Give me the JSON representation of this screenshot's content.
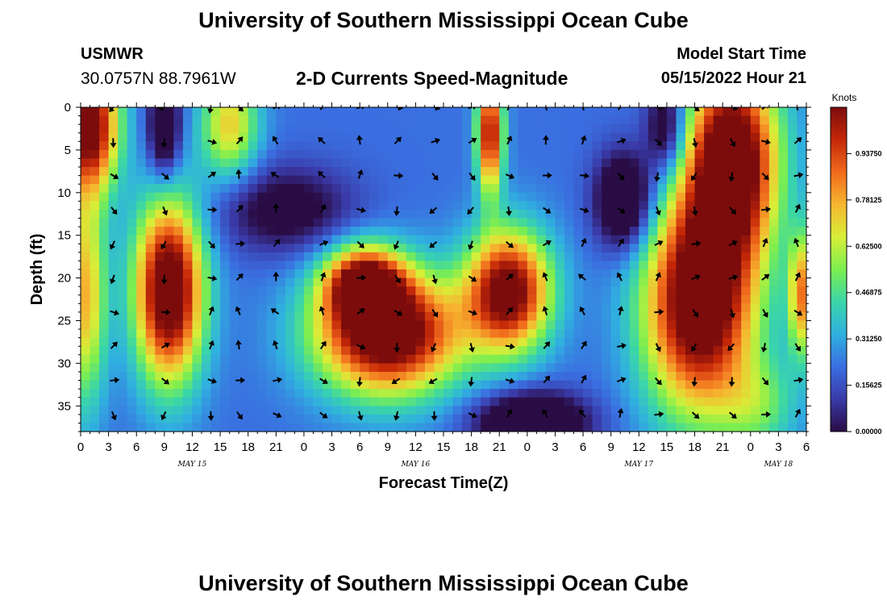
{
  "header": {
    "title": "University of Southern Mississippi Ocean Cube",
    "station": "USMWR",
    "coords": "30.0757N  88.7961W",
    "subtitle": "2-D Currents Speed-Magnitude",
    "model_start_label": "Model Start Time",
    "model_start_value": "05/15/2022 Hour 21"
  },
  "footer": {
    "title": "University of Southern Mississippi Ocean Cube"
  },
  "chart_data": {
    "type": "heatmap",
    "title": "2-D Currents Speed-Magnitude",
    "xlabel": "Forecast Time(Z)",
    "ylabel": "Depth (ft)",
    "x_ticks": [
      "0",
      "3",
      "6",
      "9",
      "12",
      "15",
      "18",
      "21",
      "0",
      "3",
      "6",
      "9",
      "12",
      "15",
      "18",
      "21",
      "0",
      "3",
      "6",
      "9",
      "12",
      "15",
      "18",
      "21",
      "0",
      "3",
      "6"
    ],
    "x_range_hours": [
      0,
      78
    ],
    "date_labels": [
      {
        "text": "MAY 15",
        "hour": 12
      },
      {
        "text": "MAY 16",
        "hour": 36
      },
      {
        "text": "MAY 17",
        "hour": 60
      },
      {
        "text": "MAY 18",
        "hour": 75
      }
    ],
    "y_ticks": [
      0,
      5,
      10,
      15,
      20,
      25,
      30,
      35
    ],
    "y_range": [
      0,
      38
    ],
    "colorbar": {
      "label": "Knots",
      "ticks": [
        "0.00000",
        "0.15625",
        "0.31250",
        "0.46875",
        "0.62500",
        "0.78125",
        "0.93750"
      ],
      "range": [
        0,
        1.09375
      ],
      "colors": [
        "#2a0c45",
        "#3a3aa8",
        "#3a6ee0",
        "#30b0e0",
        "#3ad6a8",
        "#7cee50",
        "#d8ee38",
        "#f6b630",
        "#f06a1c",
        "#c42808",
        "#7c0c0c"
      ]
    },
    "speed_blobs": [
      {
        "hour": 1.0,
        "depth": 2.0,
        "sx": 2.2,
        "sy": 5.5,
        "speed": 0.95
      },
      {
        "hour": 0.5,
        "depth": 22.0,
        "sx": 1.6,
        "sy": 9.0,
        "speed": 0.55
      },
      {
        "hour": 9.5,
        "depth": 21.5,
        "sx": 2.6,
        "sy": 7.5,
        "speed": 1.05
      },
      {
        "hour": 16.0,
        "depth": 2.0,
        "sx": 2.2,
        "sy": 4.5,
        "speed": 0.5
      },
      {
        "hour": 33.0,
        "depth": 26.5,
        "sx": 5.5,
        "sy": 5.0,
        "speed": 1.05
      },
      {
        "hour": 30.5,
        "depth": 20.5,
        "sx": 3.0,
        "sy": 3.0,
        "speed": 0.8
      },
      {
        "hour": 46.0,
        "depth": 21.5,
        "sx": 3.2,
        "sy": 5.0,
        "speed": 0.95
      },
      {
        "hour": 44.0,
        "depth": 3.0,
        "sx": 1.0,
        "sy": 5.0,
        "speed": 0.85
      },
      {
        "hour": 66.5,
        "depth": 23.0,
        "sx": 4.2,
        "sy": 9.0,
        "speed": 1.05
      },
      {
        "hour": 70.0,
        "depth": 6.0,
        "sx": 3.5,
        "sy": 8.0,
        "speed": 1.05
      },
      {
        "hour": 77.5,
        "depth": 22.0,
        "sx": 1.0,
        "sy": 5.0,
        "speed": 0.6
      },
      {
        "hour": 73.0,
        "depth": 35.0,
        "sx": 3.0,
        "sy": 4.0,
        "speed": 0.25
      },
      {
        "hour": 9.0,
        "depth": 2.5,
        "sx": 1.2,
        "sy": 4.0,
        "speed": -0.45
      },
      {
        "hour": 22.0,
        "depth": 12.0,
        "sx": 5.0,
        "sy": 3.5,
        "speed": -0.3
      },
      {
        "hour": 58.5,
        "depth": 11.0,
        "sx": 2.2,
        "sy": 4.0,
        "speed": -0.5
      },
      {
        "hour": 63.0,
        "depth": 2.5,
        "sx": 1.6,
        "sy": 4.0,
        "speed": -0.4
      },
      {
        "hour": 48.5,
        "depth": 37.0,
        "sx": 4.0,
        "sy": 2.5,
        "speed": -0.55
      }
    ],
    "base_speed": 0.22,
    "arrows": {
      "hours": [
        3.5,
        9,
        14,
        17,
        21,
        26,
        30,
        34,
        38,
        42,
        46,
        50,
        54,
        58,
        62,
        66,
        70,
        73.5,
        77
      ],
      "depths": [
        0,
        4,
        8,
        12,
        16,
        20,
        24,
        28,
        32,
        36
      ]
    }
  }
}
